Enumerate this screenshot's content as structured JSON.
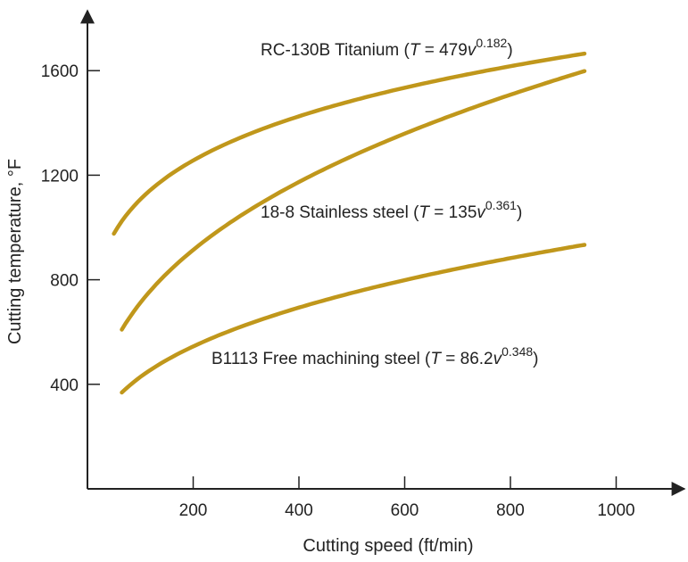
{
  "chart_data": {
    "type": "line",
    "title": "",
    "xlabel": "Cutting speed (ft/min)",
    "ylabel": "Cutting temperature, °F",
    "xlim": [
      0,
      1140
    ],
    "ylim": [
      0,
      1880
    ],
    "xticks": [
      200,
      400,
      600,
      800,
      1000
    ],
    "yticks": [
      400,
      800,
      1200,
      1600
    ],
    "grid": false,
    "colors": {
      "series": "#C0971B",
      "axis": "#222222"
    },
    "series": [
      {
        "name": "RC-130B Titanium",
        "label_prefix": "RC-130B Titanium (",
        "formula": {
          "var": "T",
          "eq": " = 479",
          "base": "v",
          "exp": "0.182"
        },
        "label_suffix": ")",
        "coef": 479,
        "exponent": 0.182,
        "x_range": [
          50,
          940
        ]
      },
      {
        "name": "18-8 Stainless steel",
        "label_prefix": "18-8 Stainless steel (",
        "formula": {
          "var": "T",
          "eq": " = 135",
          "base": "v",
          "exp": "0.361"
        },
        "label_suffix": ")",
        "coef": 135,
        "exponent": 0.361,
        "x_range": [
          65,
          940
        ]
      },
      {
        "name": "B1113 Free machining steel",
        "label_prefix": "B1113 Free machining steel (",
        "formula": {
          "var": "T",
          "eq": " = 86.2",
          "base": "v",
          "exp": "0.348"
        },
        "label_suffix": ")",
        "coef": 86.2,
        "exponent": 0.348,
        "x_range": [
          65,
          940
        ]
      }
    ]
  }
}
